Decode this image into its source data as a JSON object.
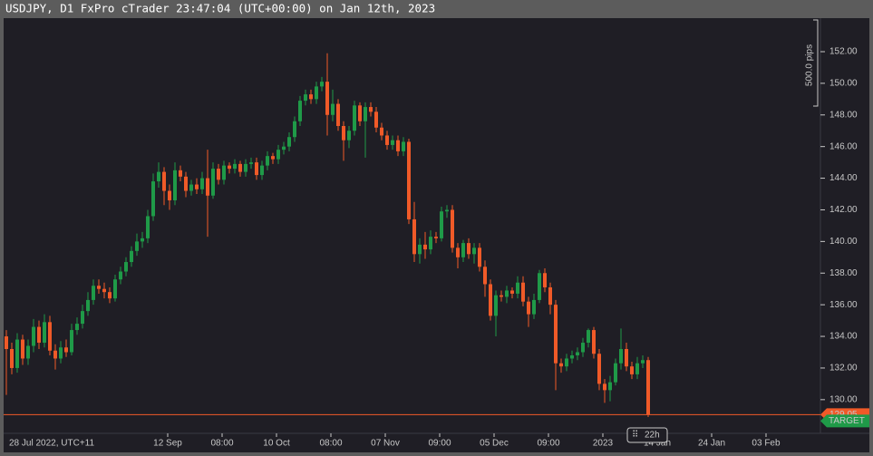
{
  "chart_data": {
    "type": "candlestick",
    "title": "USDJPY, D1 FxPro cTrader 23:47:04 (UTC+00:00) on Jan 12th, 2023",
    "up_color": "#1f9a48",
    "down_color": "#f05a28",
    "ylim": [
      127.87,
      154.12
    ],
    "yticks": [
      {
        "value": 130,
        "label": "130.00"
      },
      {
        "value": 132,
        "label": "132.00"
      },
      {
        "value": 134,
        "label": "134.00"
      },
      {
        "value": 136,
        "label": "136.00"
      },
      {
        "value": 138,
        "label": "138.00"
      },
      {
        "value": 140,
        "label": "140.00"
      },
      {
        "value": 142,
        "label": "142.00"
      },
      {
        "value": 144,
        "label": "144.00"
      },
      {
        "value": 146,
        "label": "146.00"
      },
      {
        "value": 148,
        "label": "148.00"
      },
      {
        "value": 150,
        "label": "150.00"
      },
      {
        "value": 152,
        "label": "152.00"
      }
    ],
    "start_label": "28 Jul 2022, UTC+11",
    "xlabels": [
      "12 Sep",
      "08:00",
      "10 Oct",
      "08:00",
      "07 Nov",
      "09:00",
      "05 Dec",
      "09:00",
      "2023",
      "14 Jan",
      "24 Jan",
      "03 Feb"
    ],
    "scale_label": "500.0 pips",
    "countdown": "22h",
    "target_label": "TARGET",
    "current_price": 129.05,
    "open": [
      134.0,
      133.2,
      132.0,
      133.8,
      132.6,
      133.4,
      134.6,
      133.6,
      134.9,
      133.1,
      132.6,
      133.3,
      133.0,
      134.4,
      134.8,
      135.6,
      136.3,
      137.2,
      137.0,
      136.8,
      136.4,
      137.6,
      138.1,
      138.7,
      139.4,
      140.0,
      140.2,
      141.6,
      143.8,
      144.4,
      143.2,
      142.6,
      144.5,
      144.1,
      143.2,
      143.6,
      143.3,
      144.0,
      142.9,
      144.6,
      143.9,
      144.8,
      144.6,
      144.9,
      144.4,
      144.9,
      145.0,
      144.2,
      144.8,
      145.4,
      145.2,
      145.8,
      146.0,
      146.6,
      147.6,
      148.9,
      149.3,
      149.0,
      149.8,
      150.1,
      148.0,
      148.7,
      147.3,
      146.4,
      147.0,
      148.6,
      147.6,
      148.5,
      148.2,
      147.2,
      146.7,
      146.1,
      146.4,
      145.7,
      146.3,
      141.4,
      139.2,
      139.8,
      139.5,
      140.3,
      140.2,
      141.9,
      142.0,
      139.6,
      139.0,
      139.9,
      139.2,
      139.6,
      138.4,
      137.3,
      135.3,
      136.6,
      136.5,
      136.9,
      136.7,
      137.4,
      136.2,
      135.4,
      136.3,
      138.0,
      137.1,
      136.0,
      132.3,
      132.1,
      132.6,
      132.8,
      133.0,
      133.6,
      134.4,
      132.9,
      131.0,
      130.6,
      131.1,
      132.3,
      133.2,
      132.1,
      131.6,
      132.3,
      132.5
    ],
    "high": [
      134.4,
      133.6,
      134.2,
      134.1,
      133.8,
      135.1,
      135.0,
      135.4,
      135.3,
      133.5,
      133.7,
      133.8,
      134.8,
      135.2,
      136.0,
      136.8,
      137.6,
      137.6,
      137.4,
      137.1,
      137.9,
      138.4,
      139.0,
      139.7,
      140.5,
      140.6,
      142.0,
      144.3,
      145.0,
      144.7,
      143.6,
      145.0,
      144.8,
      144.4,
      143.9,
      144.0,
      144.4,
      145.8,
      145.0,
      144.9,
      145.1,
      145.0,
      145.2,
      145.1,
      145.2,
      145.3,
      145.3,
      145.1,
      145.7,
      145.6,
      146.1,
      146.3,
      146.9,
      147.9,
      149.2,
      149.6,
      149.6,
      150.1,
      150.4,
      151.9,
      149.6,
      149.0,
      147.6,
      147.3,
      148.9,
      148.8,
      148.8,
      148.8,
      148.5,
      147.5,
      147.0,
      146.7,
      146.7,
      146.6,
      146.5,
      142.5,
      140.2,
      140.6,
      140.7,
      140.6,
      142.2,
      142.3,
      142.3,
      139.9,
      140.1,
      140.2,
      139.9,
      139.9,
      138.8,
      137.6,
      136.9,
      136.9,
      137.2,
      137.1,
      137.8,
      137.8,
      136.5,
      136.7,
      138.2,
      138.3,
      137.4,
      136.3,
      132.6,
      132.9,
      133.1,
      133.3,
      133.9,
      134.5,
      134.6,
      133.2,
      131.3,
      131.5,
      132.6,
      134.5,
      133.6,
      132.4,
      132.7,
      132.8,
      132.7
    ],
    "low": [
      130.3,
      131.6,
      131.7,
      132.2,
      132.2,
      133.0,
      133.2,
      133.3,
      132.8,
      131.9,
      132.3,
      132.7,
      132.8,
      134.1,
      134.5,
      135.3,
      136.0,
      136.7,
      136.4,
      136.1,
      136.2,
      137.3,
      137.8,
      138.4,
      139.1,
      139.6,
      139.9,
      141.3,
      143.4,
      142.3,
      142.0,
      142.3,
      143.8,
      142.8,
      142.9,
      143.0,
      143.0,
      140.3,
      142.7,
      143.6,
      143.6,
      144.3,
      144.3,
      144.1,
      144.1,
      144.6,
      143.9,
      143.9,
      144.5,
      144.9,
      144.9,
      145.5,
      145.7,
      146.3,
      147.3,
      148.6,
      148.7,
      148.7,
      149.5,
      146.7,
      147.6,
      147.0,
      145.1,
      145.9,
      146.7,
      147.3,
      145.3,
      147.9,
      146.9,
      146.4,
      145.8,
      145.8,
      145.4,
      145.4,
      141.1,
      138.7,
      138.6,
      138.9,
      139.2,
      139.9,
      140.0,
      141.5,
      139.3,
      138.3,
      138.7,
      138.9,
      138.6,
      138.1,
      136.5,
      135.0,
      134.0,
      136.2,
      136.1,
      136.4,
      136.4,
      135.9,
      134.6,
      135.1,
      136.1,
      136.8,
      135.4,
      130.6,
      131.7,
      131.8,
      132.3,
      132.5,
      132.7,
      133.3,
      132.6,
      130.6,
      129.8,
      129.9,
      130.9,
      131.9,
      131.8,
      131.3,
      131.3,
      132.0,
      128.9
    ],
    "close": [
      133.2,
      132.0,
      133.8,
      132.6,
      133.4,
      134.6,
      133.6,
      134.9,
      133.1,
      132.6,
      133.3,
      133.0,
      134.4,
      134.8,
      135.6,
      136.3,
      137.2,
      137.0,
      136.8,
      136.4,
      137.6,
      138.1,
      138.7,
      139.4,
      140.0,
      140.2,
      141.6,
      143.8,
      144.4,
      143.2,
      142.6,
      144.5,
      144.1,
      143.2,
      143.6,
      143.3,
      144.0,
      142.9,
      144.6,
      143.9,
      144.8,
      144.6,
      144.9,
      144.4,
      144.9,
      145.0,
      144.2,
      144.8,
      145.4,
      145.2,
      145.8,
      146.0,
      146.6,
      147.6,
      148.9,
      149.3,
      149.0,
      149.8,
      150.1,
      148.0,
      148.7,
      147.3,
      146.4,
      147.0,
      148.6,
      147.6,
      148.5,
      148.2,
      147.2,
      146.7,
      146.1,
      146.4,
      145.7,
      146.3,
      141.4,
      139.2,
      139.8,
      139.5,
      140.3,
      140.2,
      141.9,
      142.0,
      139.6,
      139.0,
      139.9,
      139.2,
      139.6,
      138.4,
      137.3,
      135.3,
      136.6,
      136.5,
      136.9,
      136.7,
      137.4,
      136.2,
      135.4,
      136.3,
      138.0,
      137.1,
      136.0,
      132.3,
      132.1,
      132.6,
      132.8,
      133.0,
      133.6,
      134.4,
      132.9,
      131.0,
      130.6,
      131.1,
      132.3,
      133.2,
      132.1,
      131.6,
      132.3,
      132.5,
      129.05
    ]
  }
}
